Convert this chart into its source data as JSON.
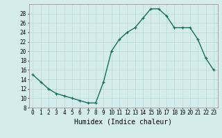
{
  "x": [
    0,
    1,
    2,
    3,
    4,
    5,
    6,
    7,
    8,
    9,
    10,
    11,
    12,
    13,
    14,
    15,
    16,
    17,
    18,
    19,
    20,
    21,
    22,
    23
  ],
  "y": [
    15,
    13.5,
    12,
    11,
    10.5,
    10,
    9.5,
    9,
    9,
    13.5,
    20,
    22.5,
    24,
    25,
    27,
    29,
    29,
    27.5,
    25,
    25,
    25,
    22.5,
    18.5,
    16
  ],
  "line_color": "#1a6b5a",
  "marker": "+",
  "bg_color": "#d4edec",
  "grid_color": "#b8d8d8",
  "xlabel": "Humidex (Indice chaleur)",
  "xlim": [
    -0.5,
    23.5
  ],
  "ylim": [
    8,
    30
  ],
  "yticks": [
    8,
    10,
    12,
    14,
    16,
    18,
    20,
    22,
    24,
    26,
    28
  ],
  "xticks": [
    0,
    1,
    2,
    3,
    4,
    5,
    6,
    7,
    8,
    9,
    10,
    11,
    12,
    13,
    14,
    15,
    16,
    17,
    18,
    19,
    20,
    21,
    22,
    23
  ],
  "xtick_labels": [
    "0",
    "1",
    "2",
    "3",
    "4",
    "5",
    "6",
    "7",
    "8",
    "9",
    "10",
    "11",
    "12",
    "13",
    "14",
    "15",
    "16",
    "17",
    "18",
    "19",
    "20",
    "21",
    "22",
    "23"
  ],
  "marker_size": 3.5,
  "line_width": 1.0,
  "tick_fontsize": 5.5,
  "xlabel_fontsize": 7
}
